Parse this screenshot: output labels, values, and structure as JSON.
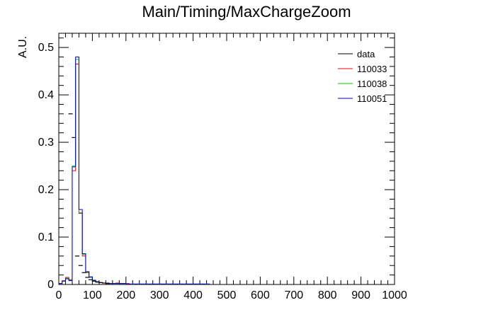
{
  "chart_data": {
    "type": "histogram",
    "title": "Main/Timing/MaxChargeZoom",
    "xlabel": "",
    "ylabel": "A.U.",
    "xlim": [
      0,
      1000
    ],
    "ylim": [
      0,
      0.53
    ],
    "x_ticks": [
      "0",
      "100",
      "200",
      "300",
      "400",
      "500",
      "600",
      "700",
      "800",
      "900",
      "1000"
    ],
    "y_ticks": [
      "0",
      "0.1",
      "0.2",
      "0.3",
      "0.4",
      "0.5"
    ],
    "grid": false,
    "legend_position": "top-right",
    "bin_width": 10,
    "bin_edges_start": 0,
    "data_points": {
      "name": "data",
      "color": "#000000",
      "x": [
        35,
        45,
        55,
        65,
        75,
        85,
        95,
        105,
        115,
        125,
        135,
        145
      ],
      "y": [
        0.36,
        0.31,
        0.06,
        0.04,
        0.025,
        0.015,
        0.01,
        0.007,
        0.005,
        0.004,
        0.003,
        0.002
      ]
    },
    "series": [
      {
        "name": "110033",
        "color": "#ff0000",
        "values": [
          0.002,
          0.008,
          0.015,
          0.01,
          0.24,
          0.465,
          0.15,
          0.06,
          0.025,
          0.015,
          0.008,
          0.005,
          0.004,
          0.003,
          0.003,
          0.002,
          0.002,
          0.003,
          0.002,
          0.002,
          0.002,
          0.001,
          0.001,
          0.001,
          0.001,
          0.001,
          0.001,
          0.001,
          0.001,
          0.001,
          0.001,
          0.001,
          0.001,
          0.001,
          0.001,
          0.001,
          0.001,
          0.001,
          0.001,
          0.001,
          0.001,
          0.001,
          0.001,
          0.001,
          0.001
        ]
      },
      {
        "name": "110038",
        "color": "#00cc00",
        "values": [
          0.002,
          0.007,
          0.013,
          0.009,
          0.25,
          0.475,
          0.152,
          0.063,
          0.026,
          0.015,
          0.008,
          0.005,
          0.004,
          0.003,
          0.003,
          0.002,
          0.002,
          0.002,
          0.002,
          0.002,
          0.001,
          0.001,
          0.001,
          0.001,
          0.001,
          0.001,
          0.001,
          0.001,
          0.001,
          0.001,
          0.001,
          0.001,
          0.001,
          0.001,
          0.001,
          0.001,
          0.001,
          0.001,
          0.001,
          0.001,
          0.001,
          0.001,
          0.001,
          0.001,
          0.001
        ]
      },
      {
        "name": "110051",
        "color": "#0000cc",
        "values": [
          0.002,
          0.007,
          0.012,
          0.008,
          0.248,
          0.48,
          0.158,
          0.065,
          0.027,
          0.016,
          0.009,
          0.006,
          0.004,
          0.003,
          0.003,
          0.002,
          0.002,
          0.002,
          0.002,
          0.002,
          0.001,
          0.001,
          0.001,
          0.001,
          0.001,
          0.001,
          0.001,
          0.001,
          0.001,
          0.001,
          0.001,
          0.001,
          0.001,
          0.001,
          0.001,
          0.001,
          0.001,
          0.001,
          0.001,
          0.001,
          0.001,
          0.001,
          0.001,
          0.001,
          0.001
        ]
      }
    ]
  }
}
